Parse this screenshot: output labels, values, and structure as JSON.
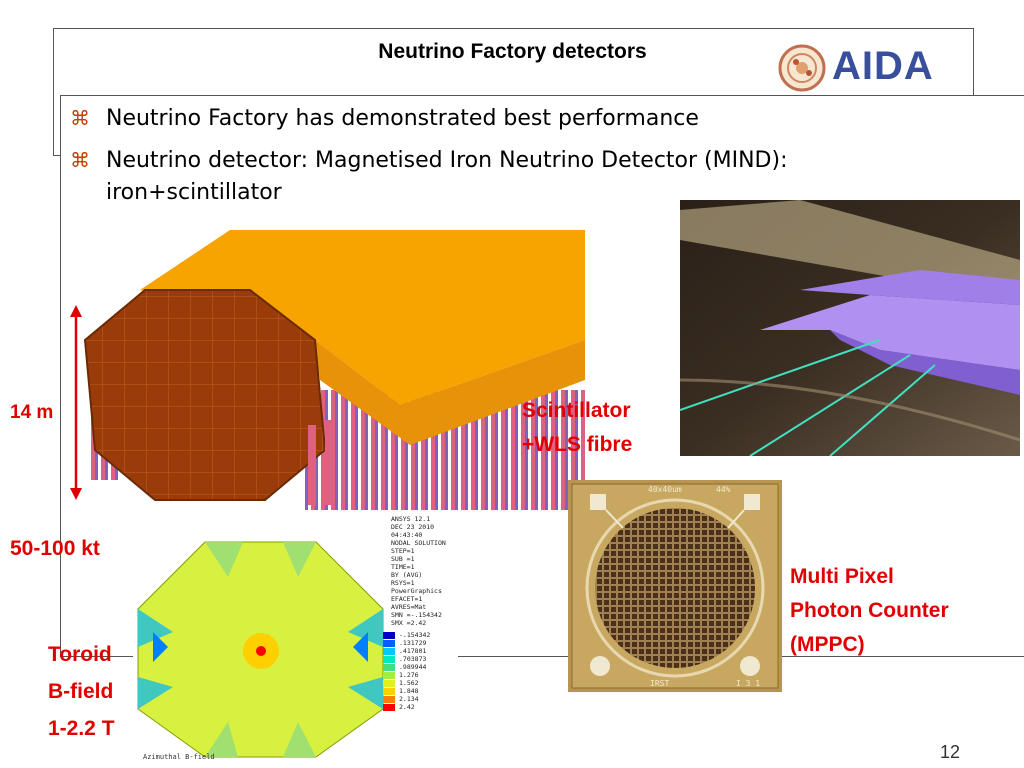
{
  "title": "Neutrino Factory detectors",
  "logo": {
    "text": "AIDA"
  },
  "bullets": [
    {
      "symbol": "⌘",
      "text": "Neutrino Factory has demonstrated best performance"
    },
    {
      "symbol": "⌘",
      "text": "Neutrino detector: Magnetised Iron Neutrino Detector (MIND):",
      "text2": "iron+scintillator"
    }
  ],
  "labels": {
    "height": "14 m",
    "mass": "50-100 kt",
    "toroid1": "Toroid",
    "toroid2": "B-field",
    "toroid3": "1-2.2 T",
    "scint1": "Scintillator",
    "scint2": "+WLS fibre",
    "mppc1": "Multi Pixel",
    "mppc2": "Photon Counter",
    "mppc3": "(MPPC)"
  },
  "ansys": {
    "lines": [
      "ANSYS 12.1",
      "DEC 23 2010",
      "04:43:40",
      "NODAL SOLUTION",
      "STEP=1",
      "SUB =1",
      "TIME=1",
      "BY        (AVG)",
      "RSYS=1",
      "PowerGraphics",
      "EFACET=1",
      "AVRES=Mat",
      "SMN =-.154342",
      "SMX =2.42"
    ],
    "legend": [
      "-.154342",
      ".131729",
      ".417801",
      ".703873",
      ".989944",
      "1.276",
      "1.562",
      "1.848",
      "2.134",
      "2.42"
    ],
    "legend_colors": [
      "#0000c0",
      "#0060ff",
      "#00c8ff",
      "#00e8c0",
      "#40e080",
      "#a0f040",
      "#e0f020",
      "#ffd000",
      "#ff8000",
      "#ff0000"
    ],
    "caption": "Azimuthal B-field"
  },
  "chip": {
    "top_left": "40x40um",
    "top_right": "44%",
    "bottom_left": "IRST",
    "bottom_right": "I 3 1"
  },
  "page_number": "12"
}
